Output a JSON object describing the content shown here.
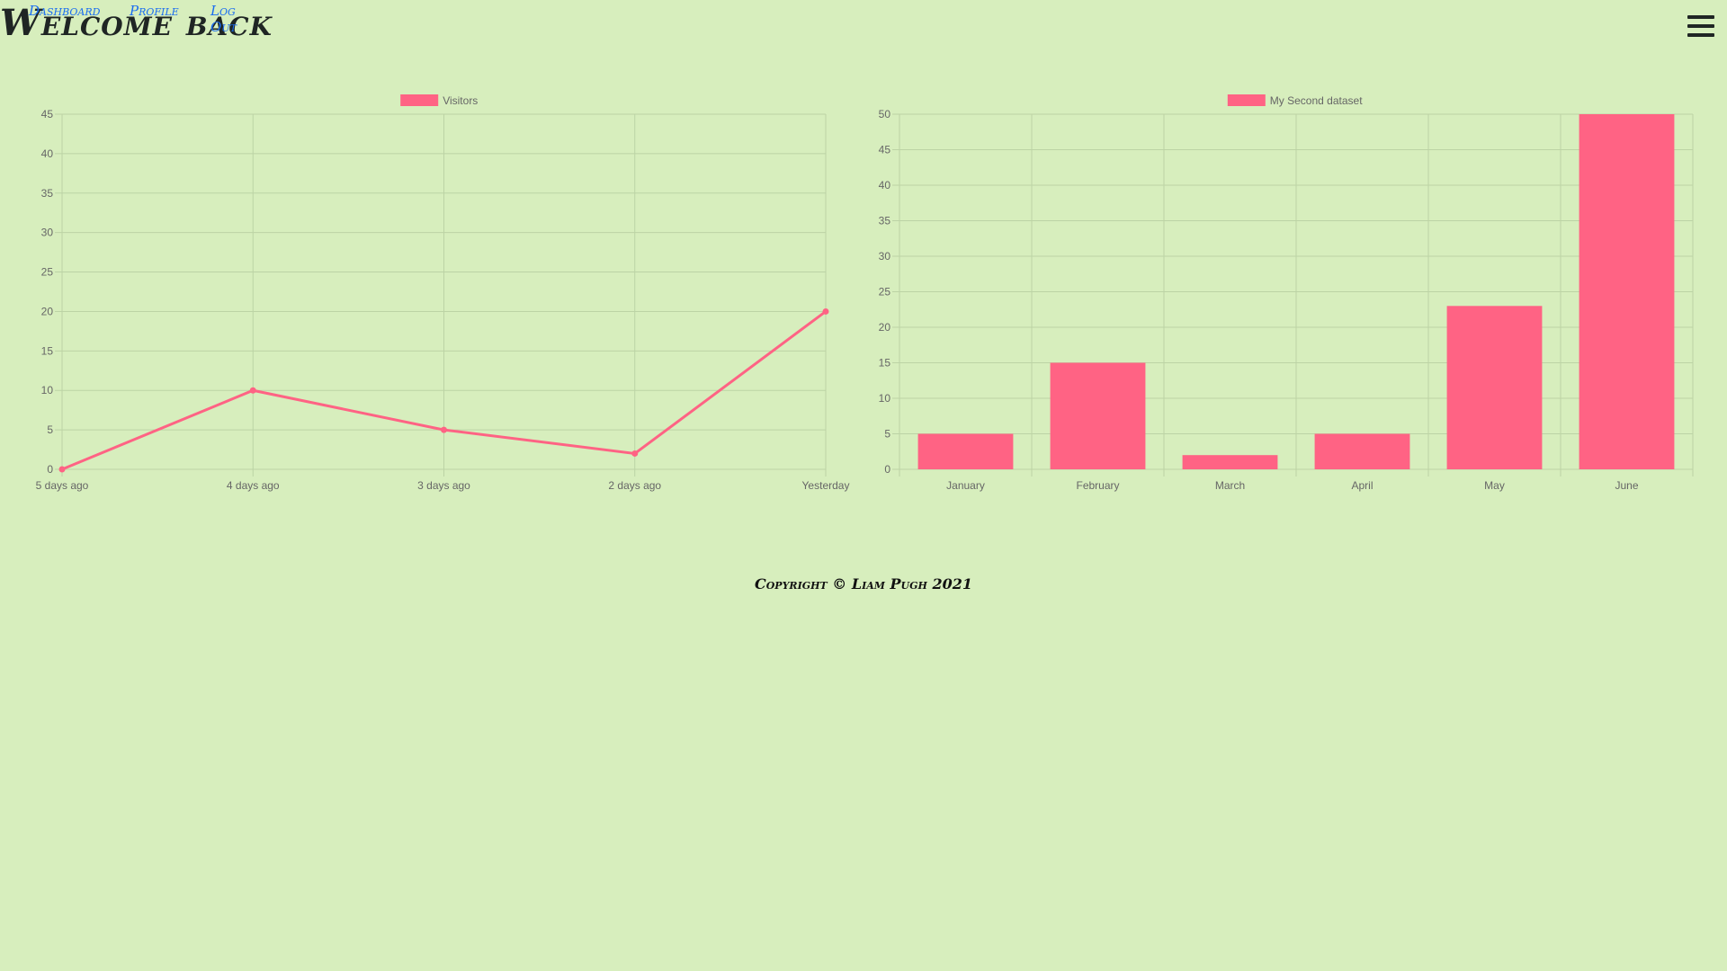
{
  "header": {
    "title": "Welcome back",
    "nav": [
      {
        "label": "Dashboard"
      },
      {
        "label": "Profile"
      },
      {
        "label": "Log Out"
      }
    ],
    "menu_icon": "hamburger-menu-icon"
  },
  "colors": {
    "background": "#d7eebd",
    "series": "#ff6384",
    "grid": "#bcd3a5",
    "axis_text": "#666666",
    "link": "#1a6df0"
  },
  "chart_data": [
    {
      "type": "line",
      "categories": [
        "5 days ago",
        "4 days ago",
        "3 days ago",
        "2 days ago",
        "Yesterday"
      ],
      "series": [
        {
          "name": "Visitors",
          "values": [
            0,
            10,
            5,
            2,
            20
          ]
        }
      ],
      "ylim": [
        0,
        45
      ],
      "yticks": [
        0,
        5,
        10,
        15,
        20,
        25,
        30,
        35,
        40,
        45
      ],
      "grid": true,
      "legend": "top"
    },
    {
      "type": "bar",
      "categories": [
        "January",
        "February",
        "March",
        "April",
        "May",
        "June"
      ],
      "series": [
        {
          "name": "My Second dataset",
          "values": [
            5,
            15,
            2,
            5,
            23,
            50
          ]
        }
      ],
      "ylim": [
        0,
        50
      ],
      "yticks": [
        0,
        5,
        10,
        15,
        20,
        25,
        30,
        35,
        40,
        45,
        50
      ],
      "grid": true,
      "legend": "top"
    }
  ],
  "footer": {
    "text": "Copyright © Liam Pugh 2021"
  }
}
